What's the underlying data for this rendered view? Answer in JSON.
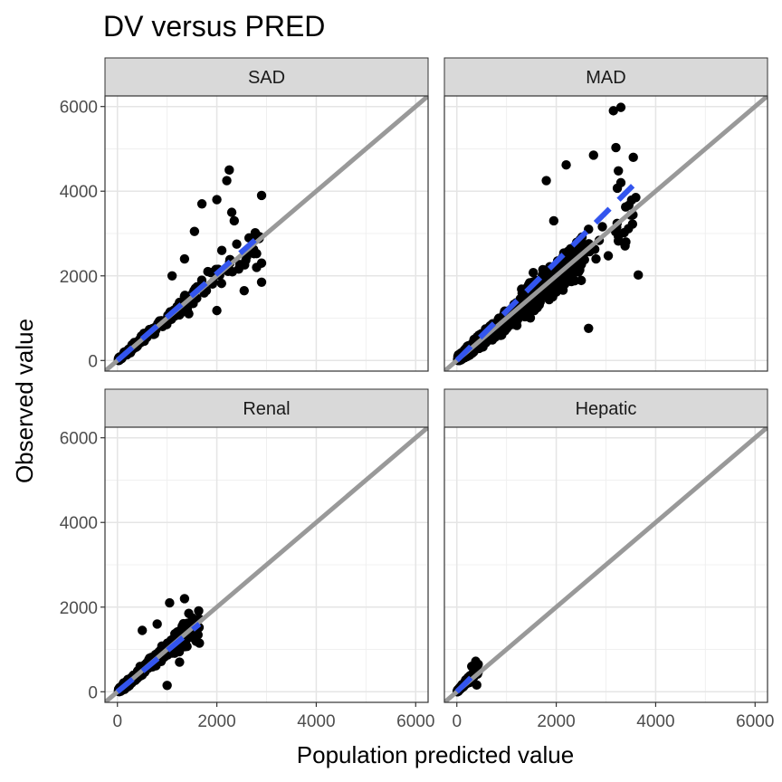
{
  "chart_data": {
    "type": "scatter",
    "title": "DV versus PRED",
    "xlabel": "Population predicted value",
    "ylabel": "Observed value",
    "xlim": [
      -250,
      6250
    ],
    "ylim": [
      -250,
      6250
    ],
    "x_ticks": [
      0,
      2000,
      4000,
      6000
    ],
    "y_ticks": [
      0,
      2000,
      4000,
      6000
    ],
    "grid": true,
    "identity_line": {
      "color": "#999999"
    },
    "trend_line": {
      "color": "#3355ee",
      "style": "dashed"
    },
    "point_color": "#000000",
    "panels": [
      {
        "name": "SAD",
        "trend": {
          "x": [
            0,
            2900
          ],
          "y": [
            0,
            2980
          ]
        },
        "clusters": [
          {
            "x0": 20,
            "x1": 1400,
            "slope": 1.0,
            "spread": 160,
            "n": 220
          },
          {
            "x0": 1400,
            "x1": 2900,
            "slope": 1.0,
            "spread": 450,
            "n": 45
          }
        ],
        "points": [
          {
            "x": 2250,
            "y": 4500
          },
          {
            "x": 2200,
            "y": 4250
          },
          {
            "x": 2900,
            "y": 3900
          },
          {
            "x": 2300,
            "y": 3500
          },
          {
            "x": 2000,
            "y": 3800
          },
          {
            "x": 1700,
            "y": 3700
          },
          {
            "x": 2350,
            "y": 3300
          },
          {
            "x": 1550,
            "y": 3050
          },
          {
            "x": 2400,
            "y": 2750
          },
          {
            "x": 2800,
            "y": 2200
          },
          {
            "x": 2900,
            "y": 1850
          },
          {
            "x": 2550,
            "y": 1650
          },
          {
            "x": 2000,
            "y": 1180
          },
          {
            "x": 2600,
            "y": 2450
          },
          {
            "x": 1100,
            "y": 2000
          },
          {
            "x": 1350,
            "y": 2400
          },
          {
            "x": 2900,
            "y": 2300
          },
          {
            "x": 2100,
            "y": 2600
          }
        ]
      },
      {
        "name": "MAD",
        "trend": {
          "x": [
            0,
            3600
          ],
          "y": [
            0,
            4200
          ]
        },
        "clusters": [
          {
            "x0": 20,
            "x1": 1300,
            "slope": 0.95,
            "spread": 260,
            "n": 600
          },
          {
            "x0": 1300,
            "x1": 2500,
            "slope": 1.0,
            "spread": 500,
            "n": 320
          },
          {
            "x0": 2500,
            "x1": 3600,
            "slope": 1.0,
            "spread": 650,
            "n": 30
          }
        ],
        "points": [
          {
            "x": 3300,
            "y": 5980
          },
          {
            "x": 3150,
            "y": 5900
          },
          {
            "x": 3200,
            "y": 5030
          },
          {
            "x": 2750,
            "y": 4850
          },
          {
            "x": 3550,
            "y": 4800
          },
          {
            "x": 3250,
            "y": 4480
          },
          {
            "x": 2200,
            "y": 4620
          },
          {
            "x": 1800,
            "y": 4250
          },
          {
            "x": 3300,
            "y": 4200
          },
          {
            "x": 3600,
            "y": 3850
          },
          {
            "x": 3250,
            "y": 2930
          },
          {
            "x": 3400,
            "y": 2800
          },
          {
            "x": 3650,
            "y": 2020
          },
          {
            "x": 2650,
            "y": 760
          },
          {
            "x": 2800,
            "y": 2400
          },
          {
            "x": 2650,
            "y": 3100
          },
          {
            "x": 1950,
            "y": 3300
          }
        ]
      },
      {
        "name": "Renal",
        "trend": {
          "x": [
            0,
            1650
          ],
          "y": [
            0,
            1600
          ]
        },
        "clusters": [
          {
            "x0": 20,
            "x1": 1100,
            "slope": 1.0,
            "spread": 170,
            "n": 420
          },
          {
            "x0": 1100,
            "x1": 1650,
            "slope": 1.0,
            "spread": 320,
            "n": 90
          }
        ],
        "points": [
          {
            "x": 1350,
            "y": 2200
          },
          {
            "x": 1050,
            "y": 2100
          },
          {
            "x": 500,
            "y": 1450
          },
          {
            "x": 1650,
            "y": 1150
          },
          {
            "x": 1250,
            "y": 700
          },
          {
            "x": 1000,
            "y": 150
          },
          {
            "x": 800,
            "y": 1600
          }
        ]
      },
      {
        "name": "Hepatic",
        "trend": {
          "x": [
            0,
            420
          ],
          "y": [
            0,
            490
          ]
        },
        "clusters": [
          {
            "x0": 10,
            "x1": 430,
            "slope": 1.2,
            "spread": 100,
            "n": 160
          }
        ],
        "points": [
          {
            "x": 380,
            "y": 720
          },
          {
            "x": 300,
            "y": 600
          },
          {
            "x": 430,
            "y": 650
          },
          {
            "x": 400,
            "y": 160
          }
        ]
      }
    ]
  }
}
